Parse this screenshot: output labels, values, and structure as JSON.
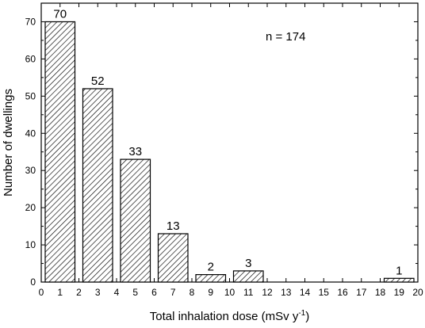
{
  "chart_data": {
    "type": "bar",
    "xlabel": "Total inhalation dose (mSv y",
    "xlabel_superscript": "-1",
    "xlabel_suffix": ")",
    "ylabel": "Number of dwellings",
    "annotation": "n = 174",
    "xlim": [
      0,
      20
    ],
    "ylim": [
      0,
      75
    ],
    "x_ticks": [
      "0",
      "1",
      "2",
      "3",
      "4",
      "5",
      "6",
      "7",
      "8",
      "9",
      "10",
      "11",
      "12",
      "13",
      "14",
      "15",
      "16",
      "17",
      "18",
      "19",
      "20"
    ],
    "y_ticks": [
      "0",
      "10",
      "20",
      "30",
      "40",
      "50",
      "60",
      "70"
    ],
    "bins": [
      {
        "x0": 0,
        "x1": 2,
        "value": 70,
        "label": "70"
      },
      {
        "x0": 2,
        "x1": 4,
        "value": 52,
        "label": "52"
      },
      {
        "x0": 4,
        "x1": 6,
        "value": 33,
        "label": "33"
      },
      {
        "x0": 6,
        "x1": 8,
        "value": 13,
        "label": "13"
      },
      {
        "x0": 8,
        "x1": 10,
        "value": 2,
        "label": "2"
      },
      {
        "x0": 10,
        "x1": 12,
        "value": 3,
        "label": "3"
      },
      {
        "x0": 18,
        "x1": 20,
        "value": 1,
        "label": "1"
      }
    ],
    "fill_pattern": "diagonal-hatch",
    "bar_color": "#000000"
  }
}
